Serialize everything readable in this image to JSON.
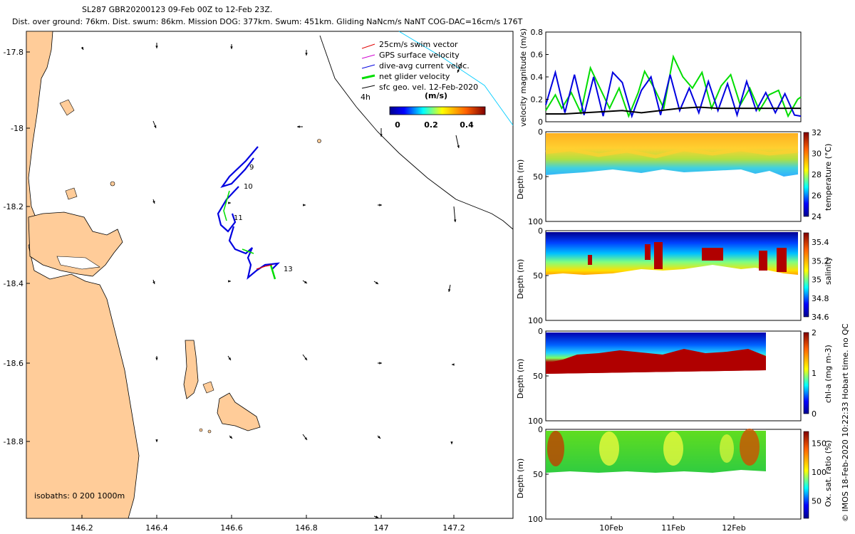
{
  "header": {
    "line1": "SL287 GBR20200123 09-Feb 00Z to 12-Feb 23Z.",
    "line2": "Dist. over ground: 76km. Dist. swum: 86km. Mission DOG: 377km. Swum: 451km. Gliding NaNcm/s NaNT COG-DAC=16cm/s 176T"
  },
  "legend": {
    "items": [
      {
        "label": "25cm/s swim vector",
        "color": "#e00000"
      },
      {
        "label": "GPS surface velocity",
        "color": "#d000d0"
      },
      {
        "label": "dive-avg current veloc.",
        "color": "#0000e0"
      },
      {
        "label": "net glider velocity",
        "color": "#00dd00"
      },
      {
        "label": "sfc geo. vel. 12-Feb-2020",
        "color": "#000000"
      }
    ],
    "interval_label": "4h",
    "colorbar_unit": "(m/s)",
    "colorbar_ticks": [
      "0",
      "0.2",
      "0.4"
    ]
  },
  "map": {
    "isobaths_label": "isobaths: 0   200  1000m",
    "x_ticks": [
      "146.2",
      "146.4",
      "146.6",
      "146.8",
      "147",
      "147.2"
    ],
    "y_ticks": [
      "-17.8",
      "-18",
      "-18.2",
      "-18.4",
      "-18.6",
      "-18.8"
    ],
    "track_labels": [
      "9",
      "10",
      "11",
      "13"
    ],
    "colors": {
      "land": "#ffcc99",
      "track": "#0000e0",
      "isobath": "#00ccff"
    }
  },
  "chart_data": [
    {
      "type": "line",
      "title": "velocity magnitude",
      "ylabel": "velocity magnitude (m/s)",
      "ylim": [
        0,
        0.8
      ],
      "yticks": [
        "0",
        "0.2",
        "0.4",
        "0.6",
        "0.8"
      ],
      "x_days": [
        9,
        13
      ],
      "series": [
        {
          "name": "net glider velocity",
          "color": "#00dd00",
          "x": [
            9.0,
            9.15,
            9.25,
            9.4,
            9.55,
            9.7,
            9.85,
            10.0,
            10.15,
            10.3,
            10.45,
            10.55,
            10.7,
            10.85,
            11.0,
            11.15,
            11.3,
            11.45,
            11.6,
            11.75,
            11.9,
            12.05,
            12.2,
            12.35,
            12.5,
            12.65,
            12.8,
            12.95,
            13.0
          ],
          "values": [
            0.1,
            0.24,
            0.12,
            0.26,
            0.08,
            0.48,
            0.3,
            0.12,
            0.3,
            0.05,
            0.26,
            0.45,
            0.3,
            0.12,
            0.58,
            0.4,
            0.3,
            0.44,
            0.12,
            0.32,
            0.42,
            0.15,
            0.3,
            0.1,
            0.24,
            0.28,
            0.05,
            0.2,
            0.22
          ]
        },
        {
          "name": "dive-avg current veloc.",
          "color": "#0000e0",
          "x": [
            9.0,
            9.15,
            9.3,
            9.45,
            9.6,
            9.75,
            9.9,
            10.05,
            10.2,
            10.35,
            10.5,
            10.65,
            10.8,
            10.95,
            11.1,
            11.25,
            11.4,
            11.55,
            11.7,
            11.85,
            12.0,
            12.15,
            12.3,
            12.45,
            12.6,
            12.75,
            12.9,
            13.0
          ],
          "values": [
            0.15,
            0.44,
            0.08,
            0.42,
            0.06,
            0.4,
            0.05,
            0.44,
            0.35,
            0.05,
            0.28,
            0.4,
            0.06,
            0.42,
            0.1,
            0.3,
            0.08,
            0.36,
            0.1,
            0.34,
            0.06,
            0.36,
            0.1,
            0.26,
            0.08,
            0.25,
            0.06,
            0.05
          ]
        },
        {
          "name": "sfc geo. vel.",
          "color": "#000000",
          "x": [
            9.0,
            9.3,
            9.6,
            9.9,
            10.2,
            10.5,
            10.8,
            11.1,
            11.4,
            11.7,
            12.0,
            12.3,
            12.6,
            12.9,
            13.0
          ],
          "values": [
            0.07,
            0.07,
            0.08,
            0.09,
            0.1,
            0.08,
            0.1,
            0.12,
            0.13,
            0.12,
            0.12,
            0.12,
            0.12,
            0.12,
            0.12
          ]
        }
      ]
    },
    {
      "type": "heatmap",
      "variable": "temperature",
      "clabel": "temperature (°C)",
      "clim": [
        24,
        32
      ],
      "cticks": [
        "24",
        "26",
        "28",
        "30",
        "32"
      ],
      "ylabel": "Depth (m)",
      "ylim": [
        0,
        100
      ],
      "yticks": [
        "0",
        "50",
        "100"
      ]
    },
    {
      "type": "heatmap",
      "variable": "salinity",
      "clabel": "salinity",
      "clim": [
        34.6,
        35.5
      ],
      "cticks": [
        "34.6",
        "34.8",
        "35",
        "35.2",
        "35.4"
      ],
      "ylabel": "Depth (m)",
      "ylim": [
        0,
        100
      ],
      "yticks": [
        "0",
        "50",
        "100"
      ]
    },
    {
      "type": "heatmap",
      "variable": "chl-a",
      "clabel": "chl-a (mg m-3)",
      "clim": [
        0,
        2
      ],
      "cticks": [
        "0",
        "1",
        "2"
      ],
      "ylabel": "Depth (m)",
      "ylim": [
        0,
        100
      ],
      "yticks": [
        "0",
        "50",
        "100"
      ]
    },
    {
      "type": "heatmap",
      "variable": "oxygen",
      "clabel": "Ox. sat. ratio (%)",
      "clim": [
        20,
        170
      ],
      "cticks": [
        "50",
        "100",
        "150"
      ],
      "ylabel": "Depth (m)",
      "ylim": [
        0,
        100
      ],
      "yticks": [
        "0",
        "50",
        "100"
      ],
      "xticks": [
        "10Feb",
        "11Feb",
        "12Feb"
      ]
    }
  ],
  "footer": {
    "vertical_note": "© IMOS 18-Feb-2020 10:22:33 Hobart time. no QC"
  }
}
